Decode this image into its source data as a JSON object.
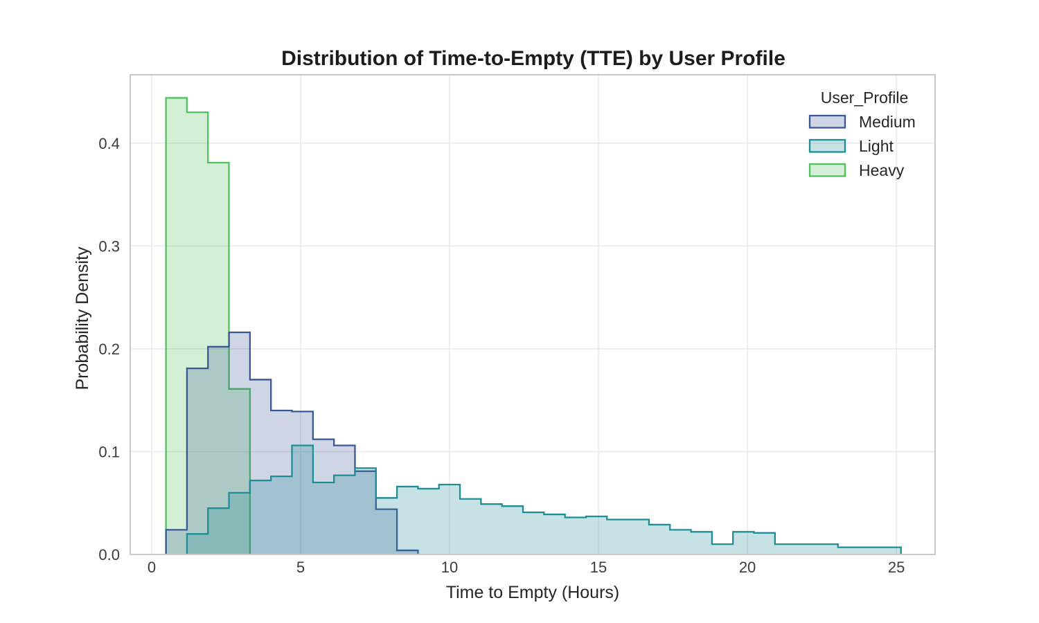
{
  "figure": {
    "background": "#ffffff"
  },
  "chart_data": {
    "type": "histogram-step",
    "title": "Distribution of Time-to-Empty (TTE) by User Profile",
    "xlabel": "Time to Empty (Hours)",
    "ylabel": "Probability Density",
    "xlim": [
      -0.72,
      26.3
    ],
    "ylim": [
      0,
      0.4665
    ],
    "xticks": [
      0,
      5,
      10,
      15,
      20,
      25
    ],
    "xtick_labels": [
      "0",
      "5",
      "10",
      "15",
      "20",
      "25"
    ],
    "yticks": [
      0.0,
      0.1,
      0.2,
      0.3,
      0.4
    ],
    "ytick_labels": [
      "0.0",
      "0.1",
      "0.2",
      "0.3",
      "0.4"
    ],
    "grid": true,
    "grid_color": "#e9e9ef",
    "spine_color": "#c9c9c9",
    "bin_start": 0.48,
    "bin_width": 0.705,
    "n_bins": 35,
    "fill_alpha": 0.25,
    "legend": {
      "title": "User_Profile",
      "position": "upper right",
      "entries": [
        "Medium",
        "Light",
        "Heavy"
      ]
    },
    "series": [
      {
        "name": "Heavy",
        "color": "#50c15c",
        "values": [
          0.444,
          0.43,
          0.381,
          0.161,
          0,
          0,
          0,
          0,
          0,
          0,
          0,
          0,
          0,
          0,
          0,
          0,
          0,
          0,
          0,
          0,
          0,
          0,
          0,
          0,
          0,
          0,
          0,
          0,
          0,
          0,
          0,
          0,
          0,
          0,
          0
        ]
      },
      {
        "name": "Medium",
        "color": "#3a5795",
        "values": [
          0.024,
          0.181,
          0.202,
          0.216,
          0.17,
          0.14,
          0.139,
          0.112,
          0.106,
          0.081,
          0.044,
          0.004,
          0,
          0,
          0,
          0,
          0,
          0,
          0,
          0,
          0,
          0,
          0,
          0,
          0,
          0,
          0,
          0,
          0,
          0,
          0,
          0,
          0,
          0,
          0
        ]
      },
      {
        "name": "Light",
        "color": "#1e8d96",
        "values": [
          0,
          0.02,
          0.045,
          0.06,
          0.072,
          0.076,
          0.106,
          0.07,
          0.077,
          0.084,
          0.055,
          0.066,
          0.064,
          0.068,
          0.054,
          0.049,
          0.047,
          0.041,
          0.039,
          0.036,
          0.037,
          0.034,
          0.034,
          0.029,
          0.024,
          0.022,
          0.01,
          0.022,
          0.021,
          0.01,
          0.01,
          0.01,
          0.007,
          0.007,
          0.007
        ]
      }
    ]
  }
}
